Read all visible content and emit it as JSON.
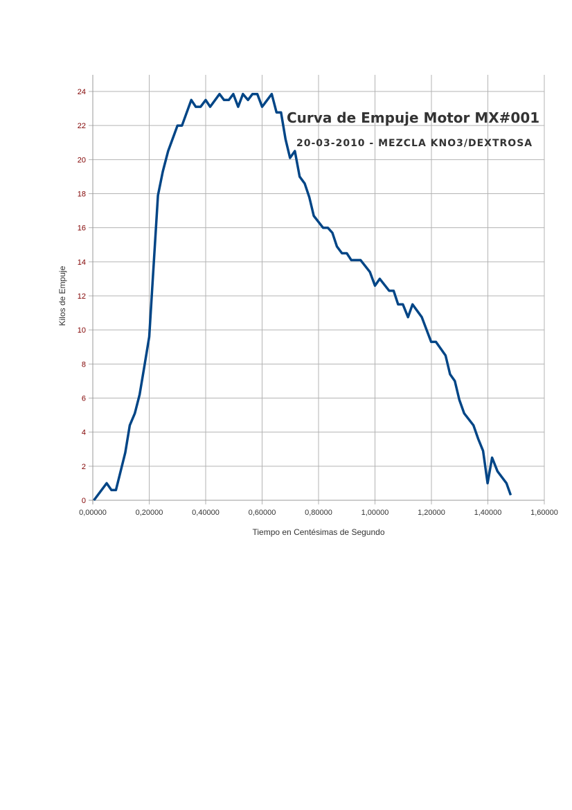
{
  "chart_data": {
    "type": "line",
    "title": "Curva de Empuje Motor MX#001",
    "subtitle": "20-03-2010 - MEZCLA KNO3/DEXTROSA",
    "xlabel": "Tiempo en Centésimas de Segundo",
    "ylabel": "Kilos de Empuje",
    "xlim": [
      0,
      1.6
    ],
    "ylim": [
      0,
      24
    ],
    "grid": true,
    "x_ticks": [
      "0,00000",
      "0,20000",
      "0,40000",
      "0,60000",
      "0,80000",
      "1,00000",
      "1,20000",
      "1,40000",
      "1,60000"
    ],
    "y_ticks": [
      "0",
      "2",
      "4",
      "6",
      "8",
      "10",
      "12",
      "14",
      "16",
      "18",
      "20",
      "22",
      "24"
    ],
    "colors": {
      "line": "#004586",
      "tick_labels": "#800000",
      "grid": "#b3b3b3",
      "title": "#333333"
    },
    "series": [
      {
        "name": "Empuje",
        "x": [
          0.004,
          0.049,
          0.066,
          0.082,
          0.115,
          0.131,
          0.149,
          0.166,
          0.182,
          0.2,
          0.213,
          0.231,
          0.248,
          0.267,
          0.3,
          0.316,
          0.349,
          0.365,
          0.382,
          0.4,
          0.416,
          0.449,
          0.465,
          0.482,
          0.498,
          0.515,
          0.532,
          0.55,
          0.566,
          0.583,
          0.6,
          0.634,
          0.651,
          0.667,
          0.683,
          0.699,
          0.716,
          0.733,
          0.751,
          0.767,
          0.783,
          0.816,
          0.833,
          0.849,
          0.865,
          0.883,
          0.9,
          0.916,
          0.949,
          0.982,
          1.0,
          1.017,
          1.05,
          1.066,
          1.082,
          1.099,
          1.117,
          1.133,
          1.166,
          1.183,
          1.199,
          1.216,
          1.25,
          1.266,
          1.283,
          1.299,
          1.316,
          1.349,
          1.366,
          1.383,
          1.399,
          1.415,
          1.434,
          1.466,
          1.481
        ],
        "y": [
          0,
          1.0,
          0.6,
          0.6,
          2.8,
          4.4,
          5.1,
          6.2,
          7.8,
          9.6,
          13.1,
          17.9,
          19.3,
          20.5,
          22.0,
          22.0,
          23.5,
          23.1,
          23.1,
          23.5,
          23.1,
          23.85,
          23.5,
          23.5,
          23.85,
          23.1,
          23.85,
          23.5,
          23.85,
          23.85,
          23.1,
          23.85,
          22.77,
          22.77,
          21.2,
          20.1,
          20.5,
          19.0,
          18.6,
          17.8,
          16.7,
          16.0,
          16.0,
          15.7,
          14.9,
          14.5,
          14.5,
          14.1,
          14.1,
          13.4,
          12.6,
          13.0,
          12.3,
          12.3,
          11.5,
          11.5,
          10.75,
          11.5,
          10.75,
          10.0,
          9.3,
          9.3,
          8.5,
          7.4,
          7.0,
          5.9,
          5.1,
          4.4,
          3.6,
          2.9,
          1.0,
          2.5,
          1.7,
          1.0,
          0.3
        ]
      }
    ]
  }
}
